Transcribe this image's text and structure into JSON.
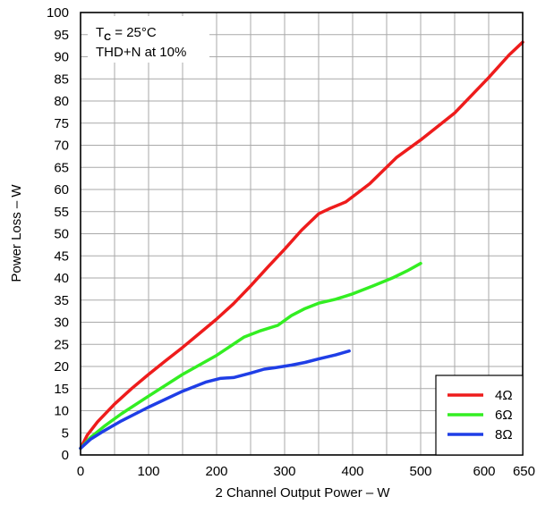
{
  "chart_data": {
    "type": "line",
    "xlabel": "2 Channel Output Power – W",
    "ylabel": "Power Loss – W",
    "xlim": [
      0,
      650
    ],
    "ylim": [
      0,
      100
    ],
    "x_ticks": [
      0,
      100,
      200,
      300,
      400,
      500,
      600,
      650
    ],
    "y_ticks": [
      0,
      5,
      10,
      15,
      20,
      25,
      30,
      35,
      40,
      45,
      50,
      55,
      60,
      65,
      70,
      75,
      80,
      85,
      90,
      95,
      100
    ],
    "x_minor_grid_step": 50,
    "grid": true,
    "annotation": {
      "line1_prefix": "T",
      "line1_sub": "C",
      "line1_suffix": " = 25°C",
      "line2": "THD+N at 10%"
    },
    "legend_position": "bottom-right",
    "series": [
      {
        "name": "4Ω",
        "color": "#ee1c1c",
        "points": [
          [
            0,
            1.5
          ],
          [
            10,
            4.5
          ],
          [
            25,
            7.5
          ],
          [
            50,
            11.5
          ],
          [
            75,
            15
          ],
          [
            100,
            18.2
          ],
          [
            125,
            21.3
          ],
          [
            150,
            24.3
          ],
          [
            175,
            27.5
          ],
          [
            200,
            30.7
          ],
          [
            225,
            34.2
          ],
          [
            250,
            38.2
          ],
          [
            275,
            42.4
          ],
          [
            300,
            46.5
          ],
          [
            325,
            50.8
          ],
          [
            350,
            54.5
          ],
          [
            365,
            55.6
          ],
          [
            390,
            57.2
          ],
          [
            425,
            61.3
          ],
          [
            465,
            67.3
          ],
          [
            500,
            71.2
          ],
          [
            550,
            77.3
          ],
          [
            600,
            85.3
          ],
          [
            630,
            90.4
          ],
          [
            650,
            93.3
          ]
        ]
      },
      {
        "name": "6Ω",
        "color": "#33ee22",
        "points": [
          [
            0,
            1.5
          ],
          [
            15,
            4
          ],
          [
            35,
            6.5
          ],
          [
            60,
            9.3
          ],
          [
            100,
            13.3
          ],
          [
            150,
            18.2
          ],
          [
            200,
            22.5
          ],
          [
            240,
            26.6
          ],
          [
            265,
            28.1
          ],
          [
            290,
            29.3
          ],
          [
            310,
            31.5
          ],
          [
            330,
            33.1
          ],
          [
            350,
            34.3
          ],
          [
            375,
            35.2
          ],
          [
            400,
            36.4
          ],
          [
            430,
            38.2
          ],
          [
            460,
            40.1
          ],
          [
            480,
            41.6
          ],
          [
            500,
            43.3
          ]
        ]
      },
      {
        "name": "8Ω",
        "color": "#1f3ee6",
        "points": [
          [
            0,
            1.5
          ],
          [
            15,
            3.6
          ],
          [
            35,
            5.5
          ],
          [
            60,
            7.7
          ],
          [
            100,
            10.8
          ],
          [
            150,
            14.4
          ],
          [
            185,
            16.5
          ],
          [
            205,
            17.3
          ],
          [
            225,
            17.5
          ],
          [
            250,
            18.5
          ],
          [
            270,
            19.4
          ],
          [
            285,
            19.7
          ],
          [
            310,
            20.3
          ],
          [
            330,
            20.9
          ],
          [
            350,
            21.7
          ],
          [
            375,
            22.6
          ],
          [
            395,
            23.5
          ]
        ]
      }
    ]
  }
}
